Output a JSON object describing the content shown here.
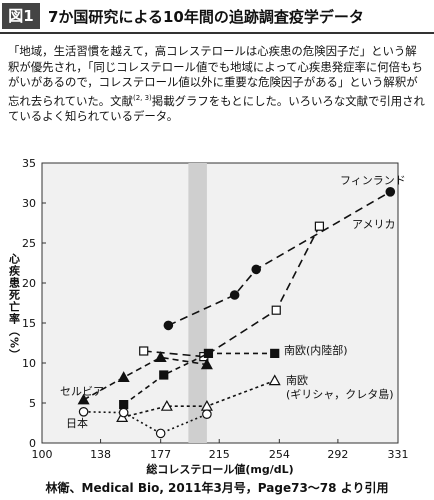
{
  "header": {
    "badge": "図1",
    "title": "7か国研究による10年間の追跡調査疫学データ"
  },
  "intro": {
    "text_before": "「地域，生活習慣を越えて，高コレステロールは心疾患の危険因子だ」という解釈が優先され，「同じコレステロール値でも地域によって心疾患発症率に何倍もちがいがあるので，コレステロール値以外に重要な危険因子がある」という解釈が忘れ去られていた。文献",
    "citation": "(2, 3)",
    "text_after": "掲載グラフをもとにした。いろいろな文献で引用されているよく知られているデータ。"
  },
  "chart_data": {
    "type": "line",
    "x_label": "総コレステロール値(mg/dL)",
    "y_label": "心疾患死亡率（%）",
    "xlim": [
      100,
      331
    ],
    "xticks": [
      100,
      138,
      177,
      215,
      254,
      292,
      331
    ],
    "ylim": [
      0,
      35
    ],
    "yticks": [
      0,
      5,
      10,
      15,
      20,
      25,
      30,
      35
    ],
    "highlight_band": [
      195,
      207
    ],
    "series": [
      {
        "name": "フィンランド",
        "color": "#111111",
        "marker": "circle-filled",
        "x": [
          182,
          225,
          239,
          326
        ],
        "values": [
          14.7,
          18.5,
          21.7,
          31.4
        ]
      },
      {
        "name": "アメリカ",
        "color": "#111111",
        "marker": "square-open",
        "x": [
          166,
          205,
          252,
          280
        ],
        "values": [
          11.5,
          10.8,
          16.6,
          27.1
        ]
      },
      {
        "name": "南欧(内陸部)",
        "color": "#111111",
        "marker": "square-filled",
        "x": [
          153,
          179,
          208,
          251
        ],
        "values": [
          4.8,
          8.5,
          11.2,
          11.2
        ]
      },
      {
        "name": "セルビア",
        "color": "#111111",
        "marker": "triangle-filled",
        "x": [
          127,
          153,
          177,
          207
        ],
        "values": [
          5.4,
          8.2,
          10.7,
          9.8
        ]
      },
      {
        "name": "南欧\n(ギリシャ，クレタ島)",
        "color": "#111111",
        "marker": "triangle-open",
        "x": [
          152,
          181,
          207,
          251
        ],
        "values": [
          3.2,
          4.6,
          4.6,
          7.8
        ]
      },
      {
        "name": "日本",
        "color": "#111111",
        "marker": "circle-open",
        "x": [
          127,
          153,
          177,
          207
        ],
        "values": [
          3.9,
          3.8,
          1.2,
          3.6
        ]
      }
    ],
    "source": "林衛、Medical Bio, 2011年3月号，Page73〜78 より引用"
  }
}
